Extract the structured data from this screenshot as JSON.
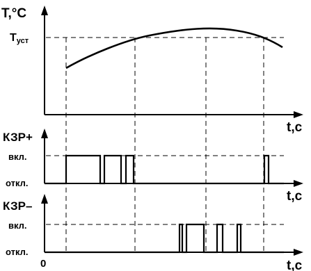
{
  "top_chart": {
    "y_label": "T,°C",
    "setpoint_main": "T",
    "setpoint_sub": "уст",
    "x_label": "t,c"
  },
  "kzr_plus": {
    "title": "КЗР+",
    "on_label": "вкл.",
    "off_label": "откл.",
    "x_label": "t,c"
  },
  "kzr_minus": {
    "title": "КЗР–",
    "on_label": "вкл.",
    "off_label": "откл.",
    "x_label": "t,c"
  },
  "origin_label": "0"
}
